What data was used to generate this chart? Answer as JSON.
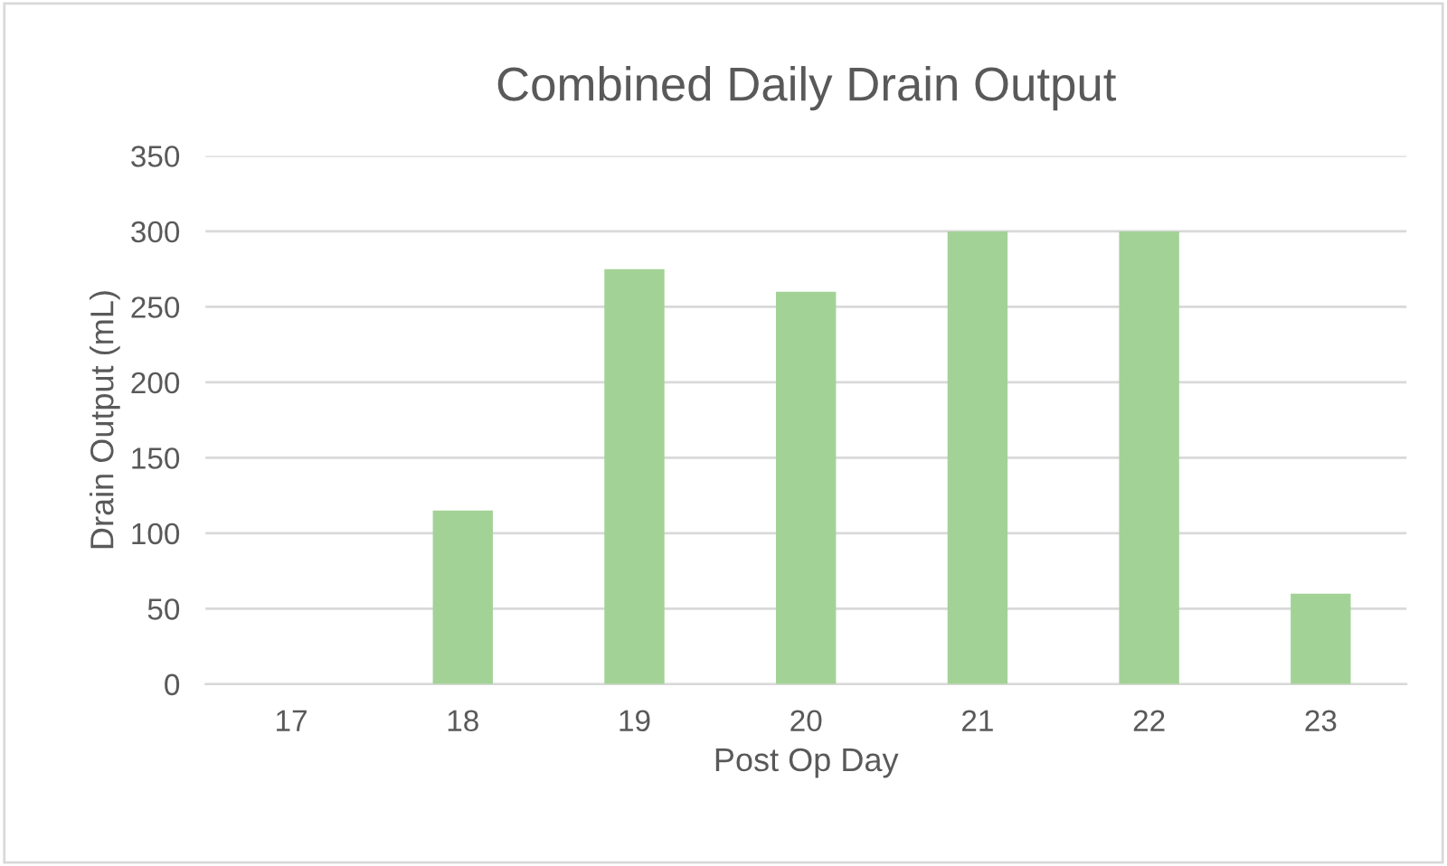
{
  "chart_data": {
    "type": "bar",
    "title": "Combined Daily Drain Output",
    "xlabel": "Post Op Day",
    "ylabel": "Drain Output (mL)",
    "categories": [
      "17",
      "18",
      "19",
      "20",
      "21",
      "22",
      "23"
    ],
    "values": [
      0,
      115,
      275,
      260,
      300,
      300,
      60
    ],
    "color": "#a3d296",
    "ylim": [
      0,
      350
    ],
    "yticks": [
      0,
      50,
      100,
      150,
      200,
      250,
      300,
      350
    ],
    "grid": "y",
    "legend": false
  }
}
